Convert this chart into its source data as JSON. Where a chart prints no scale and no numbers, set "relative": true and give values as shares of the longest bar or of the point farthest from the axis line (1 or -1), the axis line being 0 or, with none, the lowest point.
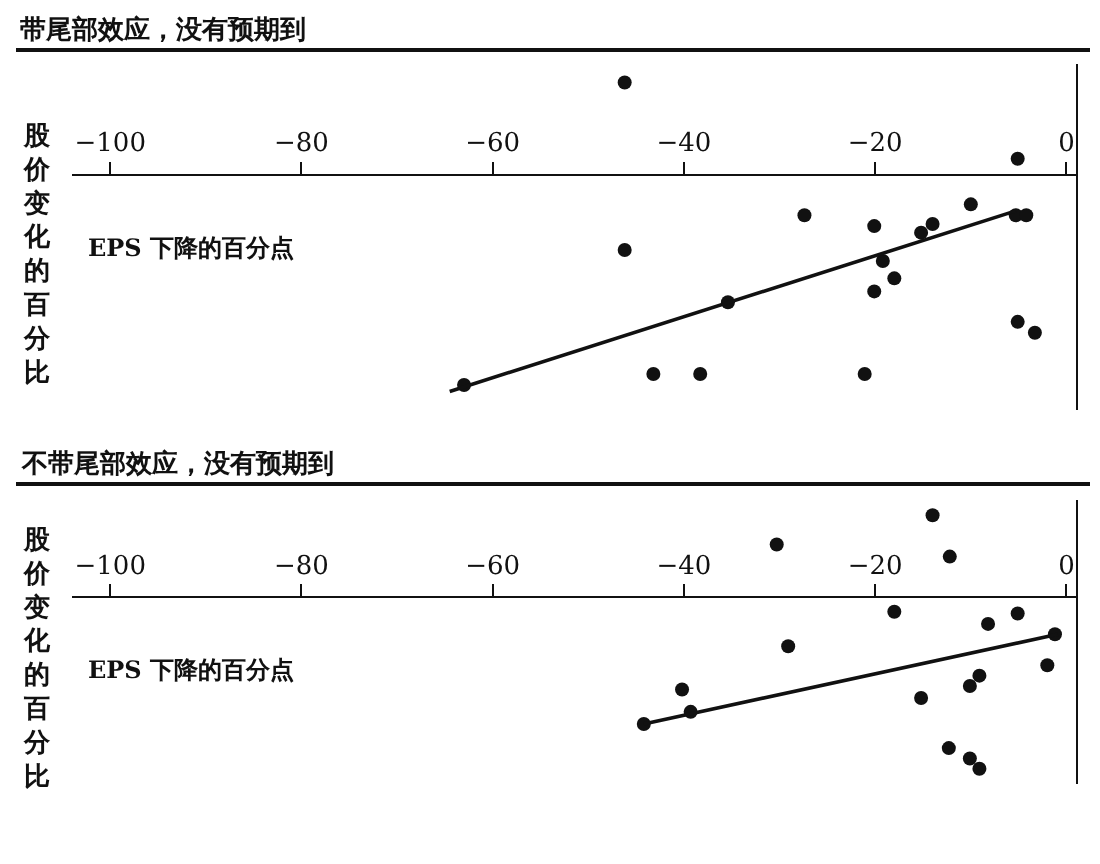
{
  "chart_data": [
    {
      "type": "scatter",
      "title": "带尾部效应，没有预期到",
      "xlabel": "EPS 下降的百分点",
      "ylabel": "股价变化的百分比",
      "relative": true,
      "xlim": [
        -104,
        1
      ],
      "xticks": [
        -100,
        -80,
        -60,
        -40,
        -20,
        0
      ],
      "series": [
        {
          "marker": "circle",
          "color": "#111111",
          "x": [
            -46.2,
            -46.2,
            -5.1,
            -27.4,
            -20.1,
            -10.0,
            -14.0,
            -15.2,
            -5.3,
            -4.2,
            -19.2,
            -18.0,
            -20.1,
            -35.4,
            -43.2,
            -38.3,
            -21.1,
            -63.0,
            -5.1,
            -3.3
          ],
          "values": [
            0.42,
            -0.35,
            0.07,
            -0.19,
            -0.24,
            -0.14,
            -0.23,
            -0.27,
            -0.19,
            -0.19,
            -0.4,
            -0.48,
            -0.54,
            -0.59,
            -0.92,
            -0.92,
            -0.92,
            -0.97,
            -0.68,
            -0.73
          ]
        },
        {
          "type": "line",
          "color": "#111111",
          "x": [
            -64.5,
            -5.3
          ],
          "values": [
            -1.0,
            -0.17
          ]
        }
      ]
    },
    {
      "type": "scatter",
      "title": "不带尾部效应，没有预期到",
      "xlabel": "EPS 下降的百分点",
      "ylabel": "股价变化的百分比",
      "relative": true,
      "xlim": [
        -104,
        1
      ],
      "xticks": [
        -100,
        -80,
        -60,
        -40,
        -20,
        0
      ],
      "series": [
        {
          "marker": "circle",
          "color": "#111111",
          "x": [
            -30.3,
            -14.0,
            -12.2,
            -18.0,
            -8.2,
            -5.1,
            -1.2,
            -2.0,
            -29.1,
            -40.2,
            -39.3,
            -44.2,
            -15.2,
            -10.1,
            -9.1,
            -12.3,
            -10.1,
            -9.1
          ],
          "values": [
            0.3,
            0.47,
            0.23,
            -0.09,
            -0.16,
            -0.1,
            -0.22,
            -0.4,
            -0.29,
            -0.54,
            -0.67,
            -0.74,
            -0.59,
            -0.52,
            -0.46,
            -0.88,
            -0.94,
            -1.0
          ]
        },
        {
          "type": "line",
          "color": "#111111",
          "x": [
            -44.2,
            -0.9
          ],
          "values": [
            -0.74,
            -0.22
          ]
        }
      ]
    }
  ]
}
